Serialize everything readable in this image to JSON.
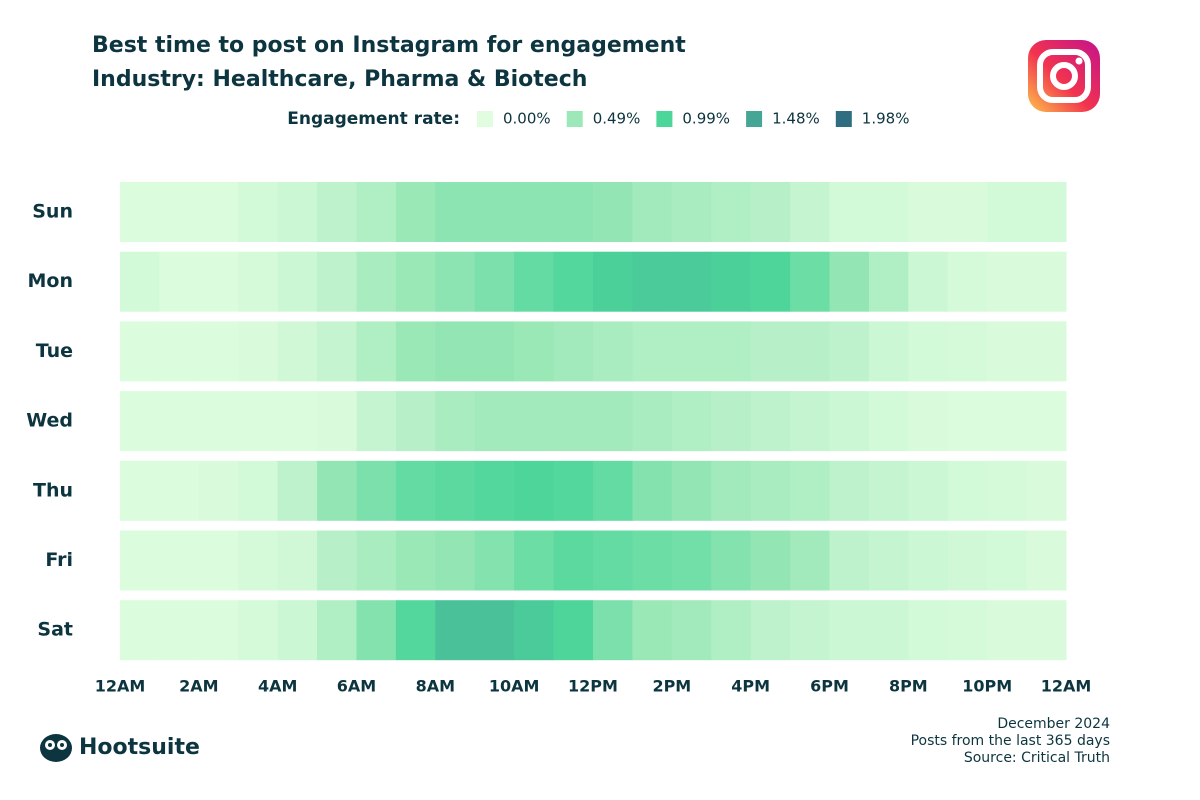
{
  "chart_data": {
    "type": "heatmap",
    "title": "Best time to post on Instagram for engagement",
    "subtitle": "Industry: Healthcare, Pharma & Biotech",
    "legend_title": "Engagement rate:",
    "colorscale": [
      {
        "value": 0,
        "label": "0.00%",
        "color": "#e0fde0"
      },
      {
        "value": 0.49,
        "label": "0.49%",
        "color": "#9de8b8"
      },
      {
        "value": 0.99,
        "label": "0.99%",
        "color": "#4dd69a"
      },
      {
        "value": 1.48,
        "label": "1.48%",
        "color": "#46a696"
      },
      {
        "value": 1.98,
        "label": "1.98%",
        "color": "#2e6e80"
      }
    ],
    "x": [
      0,
      1,
      2,
      3,
      4,
      5,
      6,
      7,
      8,
      9,
      10,
      11,
      12,
      13,
      14,
      15,
      16,
      17,
      18,
      19,
      20,
      21,
      22,
      23
    ],
    "xlim": [
      0,
      24
    ],
    "xticks": [
      {
        "value": 0,
        "label": "12AM"
      },
      {
        "value": 2,
        "label": "2AM"
      },
      {
        "value": 4,
        "label": "4AM"
      },
      {
        "value": 6,
        "label": "6AM"
      },
      {
        "value": 8,
        "label": "8AM"
      },
      {
        "value": 10,
        "label": "10AM"
      },
      {
        "value": 12,
        "label": "12PM"
      },
      {
        "value": 14,
        "label": "2PM"
      },
      {
        "value": 16,
        "label": "4PM"
      },
      {
        "value": 18,
        "label": "6PM"
      },
      {
        "value": 20,
        "label": "8PM"
      },
      {
        "value": 22,
        "label": "10PM"
      },
      {
        "value": 24,
        "label": "12AM"
      }
    ],
    "series": [
      {
        "name": "Sun",
        "values": [
          0.03,
          0.03,
          0.03,
          0.1,
          0.15,
          0.25,
          0.35,
          0.5,
          0.6,
          0.6,
          0.6,
          0.6,
          0.55,
          0.45,
          0.4,
          0.35,
          0.3,
          0.2,
          0.1,
          0.1,
          0.05,
          0.05,
          0.1,
          0.1
        ]
      },
      {
        "name": "Mon",
        "values": [
          0.1,
          0.03,
          0.03,
          0.08,
          0.15,
          0.25,
          0.4,
          0.5,
          0.6,
          0.7,
          0.85,
          0.95,
          1.05,
          1.1,
          1.1,
          1.05,
          1.0,
          0.8,
          0.55,
          0.35,
          0.15,
          0.08,
          0.05,
          0.05
        ]
      },
      {
        "name": "Tue",
        "values": [
          0.03,
          0.03,
          0.03,
          0.05,
          0.12,
          0.2,
          0.35,
          0.5,
          0.55,
          0.55,
          0.5,
          0.45,
          0.4,
          0.35,
          0.35,
          0.35,
          0.3,
          0.3,
          0.25,
          0.15,
          0.1,
          0.08,
          0.05,
          0.05
        ]
      },
      {
        "name": "Wed",
        "values": [
          0.03,
          0.03,
          0.03,
          0.03,
          0.03,
          0.05,
          0.2,
          0.3,
          0.4,
          0.45,
          0.45,
          0.45,
          0.45,
          0.4,
          0.35,
          0.3,
          0.25,
          0.2,
          0.15,
          0.1,
          0.05,
          0.03,
          0.03,
          0.03
        ]
      },
      {
        "name": "Thu",
        "values": [
          0.03,
          0.03,
          0.05,
          0.1,
          0.25,
          0.55,
          0.7,
          0.85,
          0.9,
          0.95,
          1.0,
          0.95,
          0.85,
          0.65,
          0.55,
          0.45,
          0.4,
          0.35,
          0.25,
          0.2,
          0.15,
          0.1,
          0.08,
          0.05
        ]
      },
      {
        "name": "Fri",
        "values": [
          0.03,
          0.03,
          0.03,
          0.08,
          0.12,
          0.3,
          0.4,
          0.5,
          0.55,
          0.65,
          0.8,
          0.9,
          0.85,
          0.8,
          0.75,
          0.65,
          0.55,
          0.45,
          0.25,
          0.2,
          0.15,
          0.12,
          0.1,
          0.05
        ]
      },
      {
        "name": "Sat",
        "values": [
          0.03,
          0.03,
          0.03,
          0.08,
          0.15,
          0.35,
          0.65,
          0.95,
          1.2,
          1.2,
          1.1,
          1.0,
          0.7,
          0.5,
          0.45,
          0.35,
          0.25,
          0.2,
          0.15,
          0.15,
          0.1,
          0.08,
          0.05,
          0.05
        ]
      }
    ],
    "notes": [
      "December 2024",
      "Posts from the last 365 days",
      "Source: Critical Truth"
    ],
    "brand": "Hootsuite"
  }
}
